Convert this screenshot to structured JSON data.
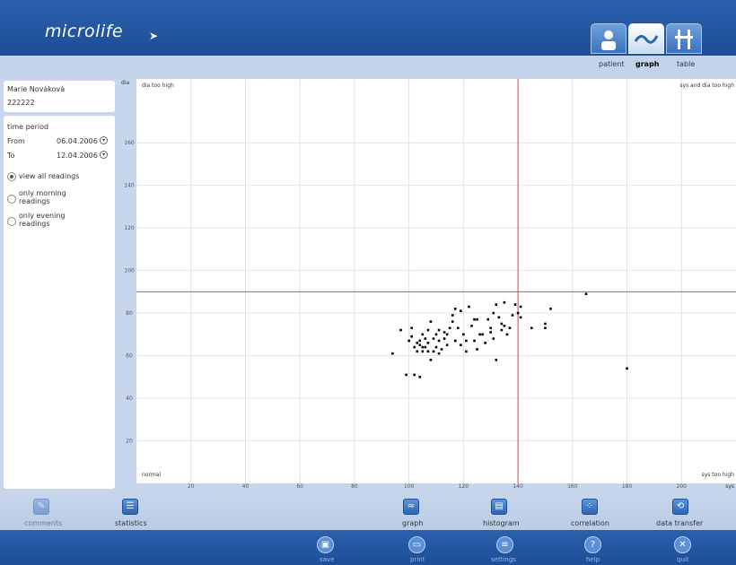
{
  "header": {
    "logo": "microlife"
  },
  "nav": {
    "items": [
      {
        "label": "patient",
        "icon": "patient-icon",
        "active": false
      },
      {
        "label": "graph",
        "icon": "graph-icon",
        "active": true
      },
      {
        "label": "table",
        "icon": "table-icon",
        "active": false
      }
    ]
  },
  "patient": {
    "name": "Marie Nováková",
    "id": "222222"
  },
  "time_period": {
    "title": "time period",
    "from_label": "From",
    "from_value": "06.04.2006",
    "to_label": "To",
    "to_value": "12.04.2006",
    "options": [
      {
        "label": "view all readings",
        "selected": true
      },
      {
        "label": "only morning readings",
        "selected": false
      },
      {
        "label": "only evening readings",
        "selected": false
      }
    ]
  },
  "chart_data": {
    "type": "scatter",
    "xlabel": "sys",
    "ylabel": "dia",
    "xlim": [
      0,
      220
    ],
    "ylim": [
      0,
      190
    ],
    "x_ticks": [
      20,
      40,
      60,
      80,
      100,
      120,
      140,
      160,
      180,
      200
    ],
    "y_ticks": [
      20,
      40,
      60,
      80,
      100,
      120,
      140,
      160
    ],
    "threshold_sys": 140,
    "threshold_dia": 90,
    "grid": true,
    "zone_labels": {
      "top_left": "dia too high",
      "top_right": "sys and dia too high",
      "bottom_left": "normal",
      "bottom_right": "sys too high"
    },
    "points": [
      [
        94,
        61
      ],
      [
        97,
        72
      ],
      [
        99,
        51
      ],
      [
        100,
        67
      ],
      [
        101,
        69
      ],
      [
        101,
        73
      ],
      [
        102,
        51
      ],
      [
        102,
        64
      ],
      [
        103,
        62
      ],
      [
        103,
        66
      ],
      [
        104,
        50
      ],
      [
        104,
        65
      ],
      [
        104,
        67
      ],
      [
        105,
        62
      ],
      [
        105,
        64
      ],
      [
        105,
        70
      ],
      [
        106,
        64
      ],
      [
        106,
        68
      ],
      [
        107,
        62
      ],
      [
        107,
        66
      ],
      [
        107,
        72
      ],
      [
        108,
        58
      ],
      [
        108,
        76
      ],
      [
        109,
        62
      ],
      [
        109,
        68
      ],
      [
        110,
        64
      ],
      [
        110,
        70
      ],
      [
        111,
        61
      ],
      [
        111,
        67
      ],
      [
        111,
        72
      ],
      [
        112,
        63
      ],
      [
        113,
        68
      ],
      [
        113,
        71
      ],
      [
        114,
        65
      ],
      [
        114,
        70
      ],
      [
        115,
        73
      ],
      [
        116,
        76
      ],
      [
        116,
        79
      ],
      [
        117,
        67
      ],
      [
        117,
        82
      ],
      [
        118,
        73
      ],
      [
        119,
        65
      ],
      [
        119,
        81
      ],
      [
        120,
        70
      ],
      [
        121,
        62
      ],
      [
        121,
        67
      ],
      [
        122,
        83
      ],
      [
        123,
        74
      ],
      [
        124,
        67
      ],
      [
        124,
        77
      ],
      [
        125,
        63
      ],
      [
        125,
        77
      ],
      [
        126,
        70
      ],
      [
        127,
        70
      ],
      [
        128,
        66
      ],
      [
        129,
        77
      ],
      [
        130,
        73
      ],
      [
        130,
        71
      ],
      [
        131,
        68
      ],
      [
        131,
        80
      ],
      [
        132,
        58
      ],
      [
        132,
        84
      ],
      [
        133,
        78
      ],
      [
        134,
        72
      ],
      [
        134,
        75
      ],
      [
        135,
        74
      ],
      [
        135,
        85
      ],
      [
        136,
        70
      ],
      [
        137,
        73
      ],
      [
        138,
        79
      ],
      [
        139,
        84
      ],
      [
        140,
        80
      ],
      [
        141,
        83
      ],
      [
        141,
        78
      ],
      [
        145,
        73
      ],
      [
        150,
        75
      ],
      [
        150,
        73
      ],
      [
        152,
        82
      ],
      [
        165,
        89
      ],
      [
        180,
        54
      ]
    ]
  },
  "toolbar": {
    "items": [
      {
        "label": "comments",
        "icon": "comment-icon",
        "enabled": false
      },
      {
        "label": "statistics",
        "icon": "statistics-icon",
        "enabled": true
      },
      {
        "label": "graph",
        "icon": "graph-icon",
        "enabled": true
      },
      {
        "label": "histogram",
        "icon": "histogram-icon",
        "enabled": true
      },
      {
        "label": "correlation",
        "icon": "correlation-icon",
        "enabled": true
      },
      {
        "label": "data transfer",
        "icon": "data-transfer-icon",
        "enabled": true
      }
    ]
  },
  "actions": {
    "items": [
      {
        "label": "save",
        "icon": "save-icon"
      },
      {
        "label": "print",
        "icon": "print-icon"
      },
      {
        "label": "settings",
        "icon": "settings-icon"
      },
      {
        "label": "help",
        "icon": "help-icon"
      },
      {
        "label": "quit",
        "icon": "quit-icon"
      }
    ]
  }
}
